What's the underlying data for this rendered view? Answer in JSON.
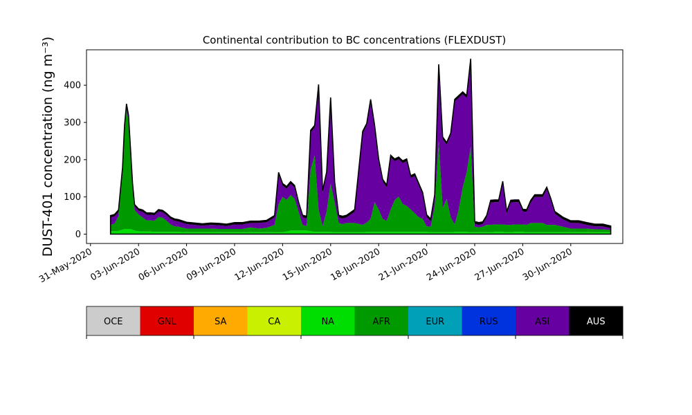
{
  "chart_data": {
    "type": "area",
    "stacked": true,
    "title": "Continental contribution to BC concentrations (FLEXDUST)",
    "ylabel": "DUST-401 concentration (ng m⁻³)",
    "xlabel": "",
    "ylim": [
      -25,
      495
    ],
    "yticks": [
      0,
      100,
      200,
      300,
      400
    ],
    "xlim": [
      "2020-05-30T18:00",
      "2020-07-03T06:00"
    ],
    "xticks": [
      "2020-05-31",
      "2020-06-03",
      "2020-06-06",
      "2020-06-09",
      "2020-06-12",
      "2020-06-15",
      "2020-06-18",
      "2020-06-21",
      "2020-06-24",
      "2020-06-27",
      "2020-06-30"
    ],
    "xtick_labels": [
      "31-May-2020",
      "03-Jun-2020",
      "06-Jun-2020",
      "09-Jun-2020",
      "12-Jun-2020",
      "15-Jun-2020",
      "18-Jun-2020",
      "21-Jun-2020",
      "24-Jun-2020",
      "27-Jun-2020",
      "30-Jun-2020"
    ],
    "grid": false,
    "legend_position": "below",
    "legend": [
      {
        "name": "OCE",
        "color": "#cccccc",
        "text_color": "#000000"
      },
      {
        "name": "GNL",
        "color": "#e00000",
        "text_color": "#000000"
      },
      {
        "name": "SA",
        "color": "#ffaa00",
        "text_color": "#000000"
      },
      {
        "name": "CA",
        "color": "#c8f000",
        "text_color": "#000000"
      },
      {
        "name": "NA",
        "color": "#00dd00",
        "text_color": "#000000"
      },
      {
        "name": "AFR",
        "color": "#009a00",
        "text_color": "#000000"
      },
      {
        "name": "EUR",
        "color": "#00a0b8",
        "text_color": "#000000"
      },
      {
        "name": "RUS",
        "color": "#0033dd",
        "text_color": "#000000"
      },
      {
        "name": "ASI",
        "color": "#6600a0",
        "text_color": "#000000"
      },
      {
        "name": "AUS",
        "color": "#000000",
        "text_color": "#ffffff"
      }
    ],
    "x": [
      "2020-06-01T06:00",
      "2020-06-01T12:00",
      "2020-06-01T18:00",
      "2020-06-02T00:00",
      "2020-06-02T03:00",
      "2020-06-02T06:00",
      "2020-06-02T09:00",
      "2020-06-02T12:00",
      "2020-06-02T15:00",
      "2020-06-02T18:00",
      "2020-06-03T00:00",
      "2020-06-03T06:00",
      "2020-06-03T12:00",
      "2020-06-03T18:00",
      "2020-06-04T00:00",
      "2020-06-04T06:00",
      "2020-06-04T12:00",
      "2020-06-04T18:00",
      "2020-06-05T00:00",
      "2020-06-05T06:00",
      "2020-06-05T12:00",
      "2020-06-06T00:00",
      "2020-06-06T12:00",
      "2020-06-07T00:00",
      "2020-06-07T12:00",
      "2020-06-08T00:00",
      "2020-06-08T12:00",
      "2020-06-09T00:00",
      "2020-06-09T12:00",
      "2020-06-10T00:00",
      "2020-06-10T12:00",
      "2020-06-11T00:00",
      "2020-06-11T12:00",
      "2020-06-11T18:00",
      "2020-06-12T00:00",
      "2020-06-12T06:00",
      "2020-06-12T12:00",
      "2020-06-12T18:00",
      "2020-06-13T00:00",
      "2020-06-13T06:00",
      "2020-06-13T12:00",
      "2020-06-13T18:00",
      "2020-06-14T00:00",
      "2020-06-14T06:00",
      "2020-06-14T12:00",
      "2020-06-14T18:00",
      "2020-06-15T00:00",
      "2020-06-15T06:00",
      "2020-06-15T12:00",
      "2020-06-15T18:00",
      "2020-06-16T00:00",
      "2020-06-16T12:00",
      "2020-06-17T00:00",
      "2020-06-17T06:00",
      "2020-06-17T12:00",
      "2020-06-17T18:00",
      "2020-06-18T00:00",
      "2020-06-18T06:00",
      "2020-06-18T12:00",
      "2020-06-18T18:00",
      "2020-06-19T00:00",
      "2020-06-19T06:00",
      "2020-06-19T12:00",
      "2020-06-19T18:00",
      "2020-06-20T00:00",
      "2020-06-20T06:00",
      "2020-06-20T12:00",
      "2020-06-20T18:00",
      "2020-06-21T00:00",
      "2020-06-21T06:00",
      "2020-06-21T12:00",
      "2020-06-21T18:00",
      "2020-06-22T00:00",
      "2020-06-22T06:00",
      "2020-06-22T12:00",
      "2020-06-22T18:00",
      "2020-06-23T00:00",
      "2020-06-23T06:00",
      "2020-06-23T12:00",
      "2020-06-23T18:00",
      "2020-06-24T00:00",
      "2020-06-24T06:00",
      "2020-06-24T12:00",
      "2020-06-24T18:00",
      "2020-06-25T00:00",
      "2020-06-25T06:00",
      "2020-06-25T12:00",
      "2020-06-25T18:00",
      "2020-06-26T00:00",
      "2020-06-26T06:00",
      "2020-06-26T12:00",
      "2020-06-26T18:00",
      "2020-06-27T00:00",
      "2020-06-27T06:00",
      "2020-06-27T12:00",
      "2020-06-27T18:00",
      "2020-06-28T00:00",
      "2020-06-28T06:00",
      "2020-06-28T12:00",
      "2020-06-28T18:00",
      "2020-06-29T00:00",
      "2020-06-29T12:00",
      "2020-06-30T00:00",
      "2020-06-30T12:00",
      "2020-07-01T00:00",
      "2020-07-01T12:00",
      "2020-07-02T00:00",
      "2020-07-02T12:00"
    ],
    "series": [
      {
        "name": "NA",
        "values": [
          8,
          8,
          9,
          12,
          14,
          14,
          14,
          14,
          12,
          10,
          8,
          7,
          7,
          7,
          6,
          6,
          6,
          6,
          6,
          6,
          6,
          5,
          5,
          5,
          5,
          5,
          5,
          5,
          5,
          5,
          5,
          5,
          5,
          5,
          5,
          7,
          10,
          10,
          10,
          10,
          10,
          8,
          6,
          6,
          6,
          6,
          6,
          5,
          5,
          5,
          5,
          5,
          5,
          6,
          6,
          6,
          6,
          6,
          6,
          6,
          6,
          6,
          6,
          6,
          6,
          6,
          6,
          6,
          6,
          5,
          5,
          5,
          5,
          5,
          5,
          6,
          6,
          6,
          6,
          5,
          5,
          5,
          5,
          5,
          5,
          6,
          6,
          6,
          5,
          5,
          6,
          6,
          6,
          5,
          5,
          5,
          5,
          5,
          5,
          5,
          5,
          5,
          5,
          5,
          5,
          5,
          5,
          5
        ]
      },
      {
        "name": "AFR",
        "values": [
          17,
          20,
          40,
          150,
          260,
          320,
          290,
          200,
          110,
          55,
          45,
          38,
          30,
          30,
          30,
          40,
          38,
          30,
          20,
          15,
          14,
          10,
          10,
          10,
          10,
          9,
          9,
          9,
          9,
          13,
          10,
          12,
          20,
          75,
          95,
          85,
          95,
          85,
          50,
          15,
          12,
          165,
          205,
          60,
          15,
          55,
          130,
          80,
          25,
          22,
          25,
          25,
          20,
          25,
          35,
          80,
          60,
          35,
          30,
          60,
          85,
          95,
          75,
          70,
          60,
          50,
          40,
          35,
          15,
          15,
          70,
          245,
          65,
          90,
          40,
          20,
          60,
          120,
          160,
          230,
          15,
          13,
          15,
          20,
          20,
          20,
          20,
          20,
          20,
          20,
          20,
          20,
          20,
          20,
          25,
          25,
          25,
          25,
          20,
          20,
          20,
          15,
          10,
          10,
          10,
          8,
          8,
          6
        ]
      },
      {
        "name": "ASI",
        "values": [
          20,
          20,
          10,
          10,
          10,
          10,
          10,
          10,
          10,
          10,
          10,
          15,
          15,
          15,
          15,
          15,
          15,
          15,
          15,
          15,
          14,
          12,
          10,
          8,
          10,
          10,
          8,
          12,
          12,
          12,
          15,
          15,
          20,
          80,
          30,
          30,
          30,
          30,
          20,
          20,
          20,
          100,
          75,
          330,
          90,
          100,
          225,
          50,
          15,
          15,
          15,
          30,
          245,
          260,
          315,
          200,
          130,
          100,
          90,
          140,
          105,
          100,
          110,
          120,
          85,
          100,
          85,
          65,
          25,
          15,
          25,
          200,
          185,
          145,
          220,
          330,
          300,
          250,
          200,
          230,
          8,
          7,
          7,
          20,
          60,
          60,
          60,
          110,
          30,
          60,
          60,
          60,
          35,
          35,
          55,
          70,
          70,
          70,
          95,
          65,
          30,
          20,
          15,
          15,
          10,
          8,
          8,
          5
        ]
      },
      {
        "name": "AUS",
        "values": [
          5,
          5,
          6,
          7,
          6,
          6,
          6,
          6,
          6,
          5,
          5,
          5,
          5,
          5,
          5,
          5,
          5,
          5,
          5,
          5,
          5,
          5,
          5,
          5,
          5,
          5,
          5,
          5,
          5,
          5,
          5,
          5,
          5,
          6,
          6,
          6,
          6,
          6,
          6,
          6,
          6,
          6,
          6,
          6,
          6,
          6,
          6,
          6,
          6,
          6,
          6,
          6,
          6,
          6,
          6,
          6,
          6,
          6,
          6,
          6,
          6,
          6,
          6,
          6,
          6,
          6,
          6,
          6,
          6,
          6,
          6,
          6,
          6,
          6,
          6,
          6,
          6,
          6,
          6,
          6,
          6,
          6,
          6,
          6,
          6,
          6,
          6,
          6,
          6,
          6,
          6,
          6,
          6,
          6,
          6,
          6,
          6,
          6,
          6,
          6,
          6,
          6,
          6,
          6,
          6,
          6,
          6,
          6
        ]
      }
    ]
  }
}
